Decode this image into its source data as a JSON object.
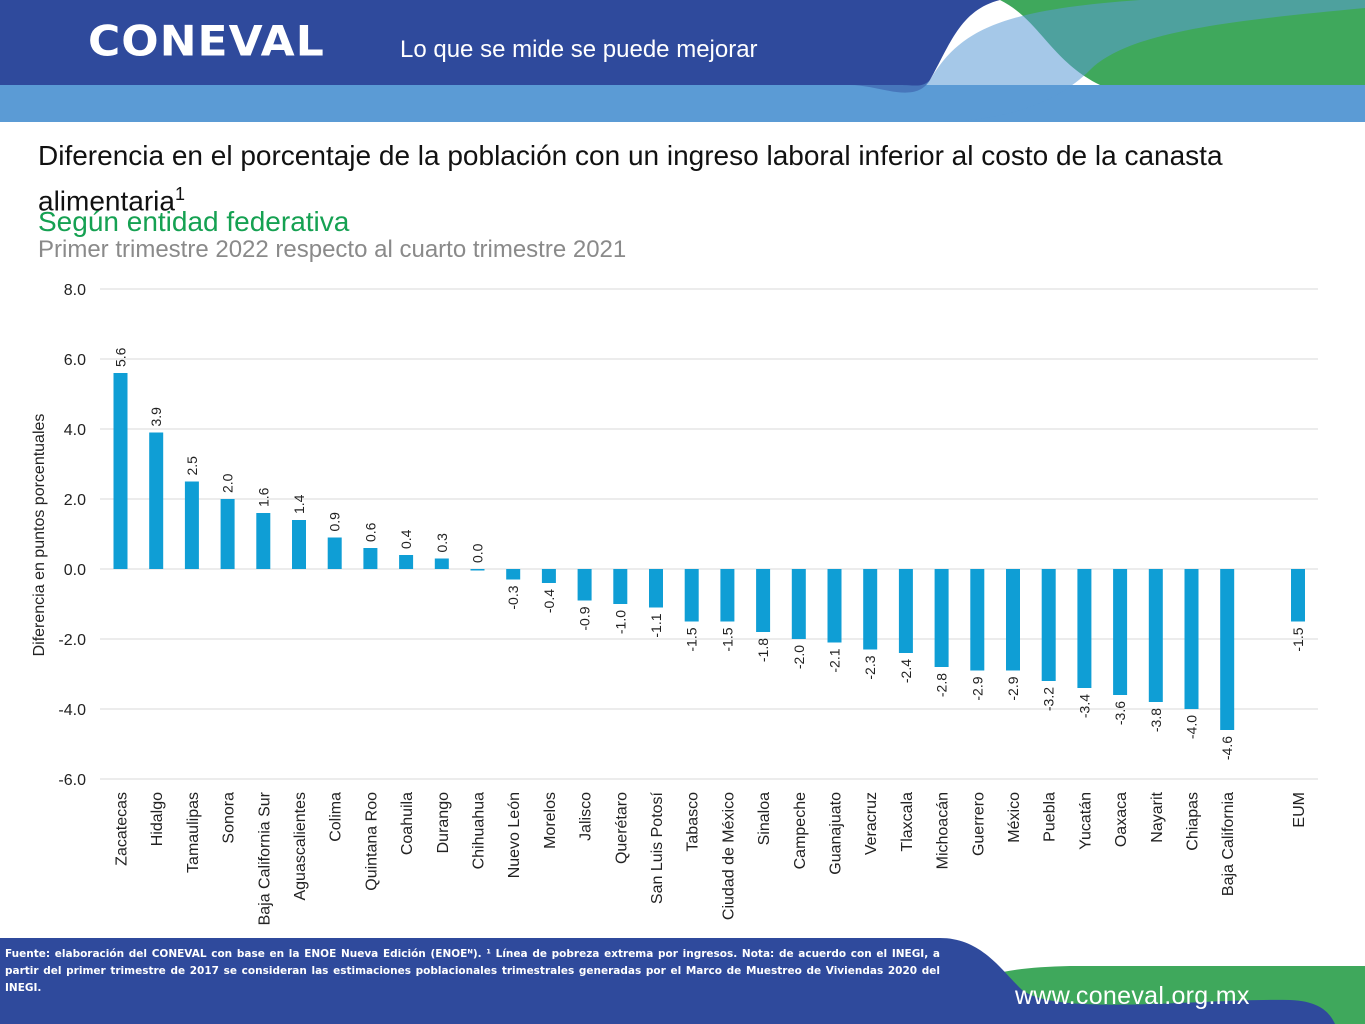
{
  "header": {
    "logo_text": "CONEVAL",
    "tagline": "Lo que se mide se puede mejorar",
    "colors": {
      "navy": "#2f4a9c",
      "light_blue": "#5b9bd5",
      "green": "#3fa85c"
    }
  },
  "title": "Diferencia en el porcentaje de la población con un ingreso laboral inferior al costo de la canasta alimentaria",
  "title_sup": "1",
  "subtitle": "Según entidad federativa",
  "period": "Primer trimestre 2022 respecto al cuarto trimestre 2021",
  "chart_data": {
    "type": "bar",
    "ylabel": "Diferencia en puntos porcentuales",
    "ylim": [
      -6,
      8
    ],
    "yticks": [
      "8.0",
      "6.0",
      "4.0",
      "2.0",
      "0.0",
      "-2.0",
      "-4.0",
      "-6.0"
    ],
    "grid": true,
    "bar_color": "#0f9ed5",
    "categories": [
      "Zacatecas",
      "Hidalgo",
      "Tamaulipas",
      "Sonora",
      "Baja California Sur",
      "Aguascalientes",
      "Colima",
      "Quintana Roo",
      "Coahuila",
      "Durango",
      "Chihuahua",
      "Nuevo León",
      "Morelos",
      "Jalisco",
      "Querétaro",
      "San Luis Potosí",
      "Tabasco",
      "Ciudad de México",
      "Sinaloa",
      "Campeche",
      "Guanajuato",
      "Veracruz",
      "Tlaxcala",
      "Michoacán",
      "Guerrero",
      "México",
      "Puebla",
      "Yucatán",
      "Oaxaca",
      "Nayarit",
      "Chiapas",
      "Baja California",
      "EUM"
    ],
    "values": [
      5.6,
      3.9,
      2.5,
      2.0,
      1.6,
      1.4,
      0.9,
      0.6,
      0.4,
      0.3,
      0.0,
      -0.3,
      -0.4,
      -0.9,
      -1.0,
      -1.1,
      -1.5,
      -1.5,
      -1.8,
      -2.0,
      -2.1,
      -2.3,
      -2.4,
      -2.8,
      -2.9,
      -2.9,
      -3.2,
      -3.4,
      -3.6,
      -3.8,
      -4.0,
      -4.6,
      -1.5
    ],
    "labels": [
      "5.6",
      "3.9",
      "2.5",
      "2.0",
      "1.6",
      "1.4",
      "0.9",
      "0.6",
      "0.4",
      "0.3",
      "0.0",
      "-0.3",
      "-0.4",
      "-0.9",
      "-1.0",
      "-1.1",
      "-1.5",
      "-1.5",
      "-1.8",
      "-2.0",
      "-2.1",
      "-2.3",
      "-2.4",
      "-2.8",
      "-2.9",
      "-2.9",
      "-3.2",
      "-3.4",
      "-3.6",
      "-3.8",
      "-4.0",
      "-4.6",
      "-1.5"
    ]
  },
  "footer": {
    "note": "Fuente: elaboración del CONEVAL con base en la ENOE Nueva Edición (ENOEᴺ). ¹ Línea de pobreza extrema por ingresos. Nota: de acuerdo con el INEGI, a partir del primer trimestre de 2017 se consideran las estimaciones poblacionales trimestrales generadas por el Marco de Muestreo de Viviendas 2020 del INEGI.",
    "website": "www.coneval.org.mx"
  }
}
